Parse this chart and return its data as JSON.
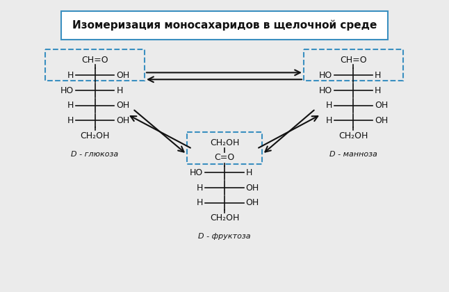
{
  "title": "Изомеризация моносахаридов в щелочной среде",
  "bg_color": "#ebebeb",
  "box_color": "#3a8fc0",
  "text_color": "#111111",
  "arrow_color": "#111111",
  "glucose_label": "D - глюкоза",
  "mannose_label": "D - манноза",
  "fructose_label": "D - фруктоза",
  "title_fontsize": 11,
  "fs_struct": 9,
  "fs_label": 8
}
